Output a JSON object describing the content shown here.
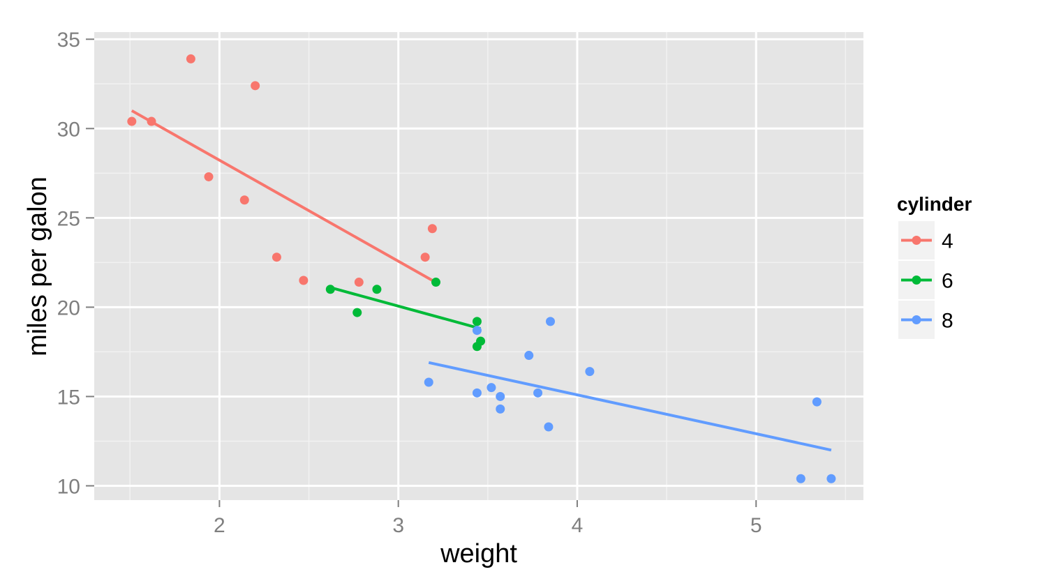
{
  "chart_data": {
    "type": "scatter",
    "xlabel": "weight",
    "ylabel": "miles per galon",
    "xlim": [
      1.3,
      5.6
    ],
    "ylim": [
      9.2,
      35.4
    ],
    "xticks": [
      2,
      3,
      4,
      5
    ],
    "yticks": [
      10,
      15,
      20,
      25,
      30,
      35
    ],
    "grid": true,
    "legend": {
      "title": "cylinder",
      "position": "right"
    },
    "series": [
      {
        "name": "4",
        "color": "#F8766D",
        "points": [
          [
            1.51,
            30.4
          ],
          [
            1.62,
            30.4
          ],
          [
            1.84,
            33.9
          ],
          [
            1.94,
            27.3
          ],
          [
            2.14,
            26.0
          ],
          [
            2.2,
            32.4
          ],
          [
            2.32,
            22.8
          ],
          [
            2.47,
            21.5
          ],
          [
            2.78,
            21.4
          ],
          [
            3.15,
            22.8
          ],
          [
            3.19,
            24.4
          ]
        ],
        "fit": [
          [
            1.51,
            31.0
          ],
          [
            3.19,
            21.5
          ]
        ]
      },
      {
        "name": "6",
        "color": "#00BA38",
        "points": [
          [
            2.62,
            21.0
          ],
          [
            2.77,
            19.7
          ],
          [
            2.88,
            21.0
          ],
          [
            3.21,
            21.4
          ],
          [
            3.44,
            19.2
          ],
          [
            3.44,
            17.8
          ],
          [
            3.46,
            18.1
          ]
        ],
        "fit": [
          [
            2.62,
            21.1
          ],
          [
            3.46,
            18.8
          ]
        ]
      },
      {
        "name": "8",
        "color": "#619CFF",
        "points": [
          [
            3.17,
            15.8
          ],
          [
            3.44,
            15.2
          ],
          [
            3.44,
            18.7
          ],
          [
            3.52,
            15.5
          ],
          [
            3.57,
            15.0
          ],
          [
            3.57,
            14.3
          ],
          [
            3.73,
            17.3
          ],
          [
            3.78,
            15.2
          ],
          [
            3.84,
            13.3
          ],
          [
            3.85,
            19.2
          ],
          [
            4.07,
            16.4
          ],
          [
            5.25,
            10.4
          ],
          [
            5.34,
            14.7
          ],
          [
            5.42,
            10.4
          ]
        ],
        "fit": [
          [
            3.17,
            16.9
          ],
          [
            5.42,
            12.0
          ]
        ]
      }
    ]
  }
}
